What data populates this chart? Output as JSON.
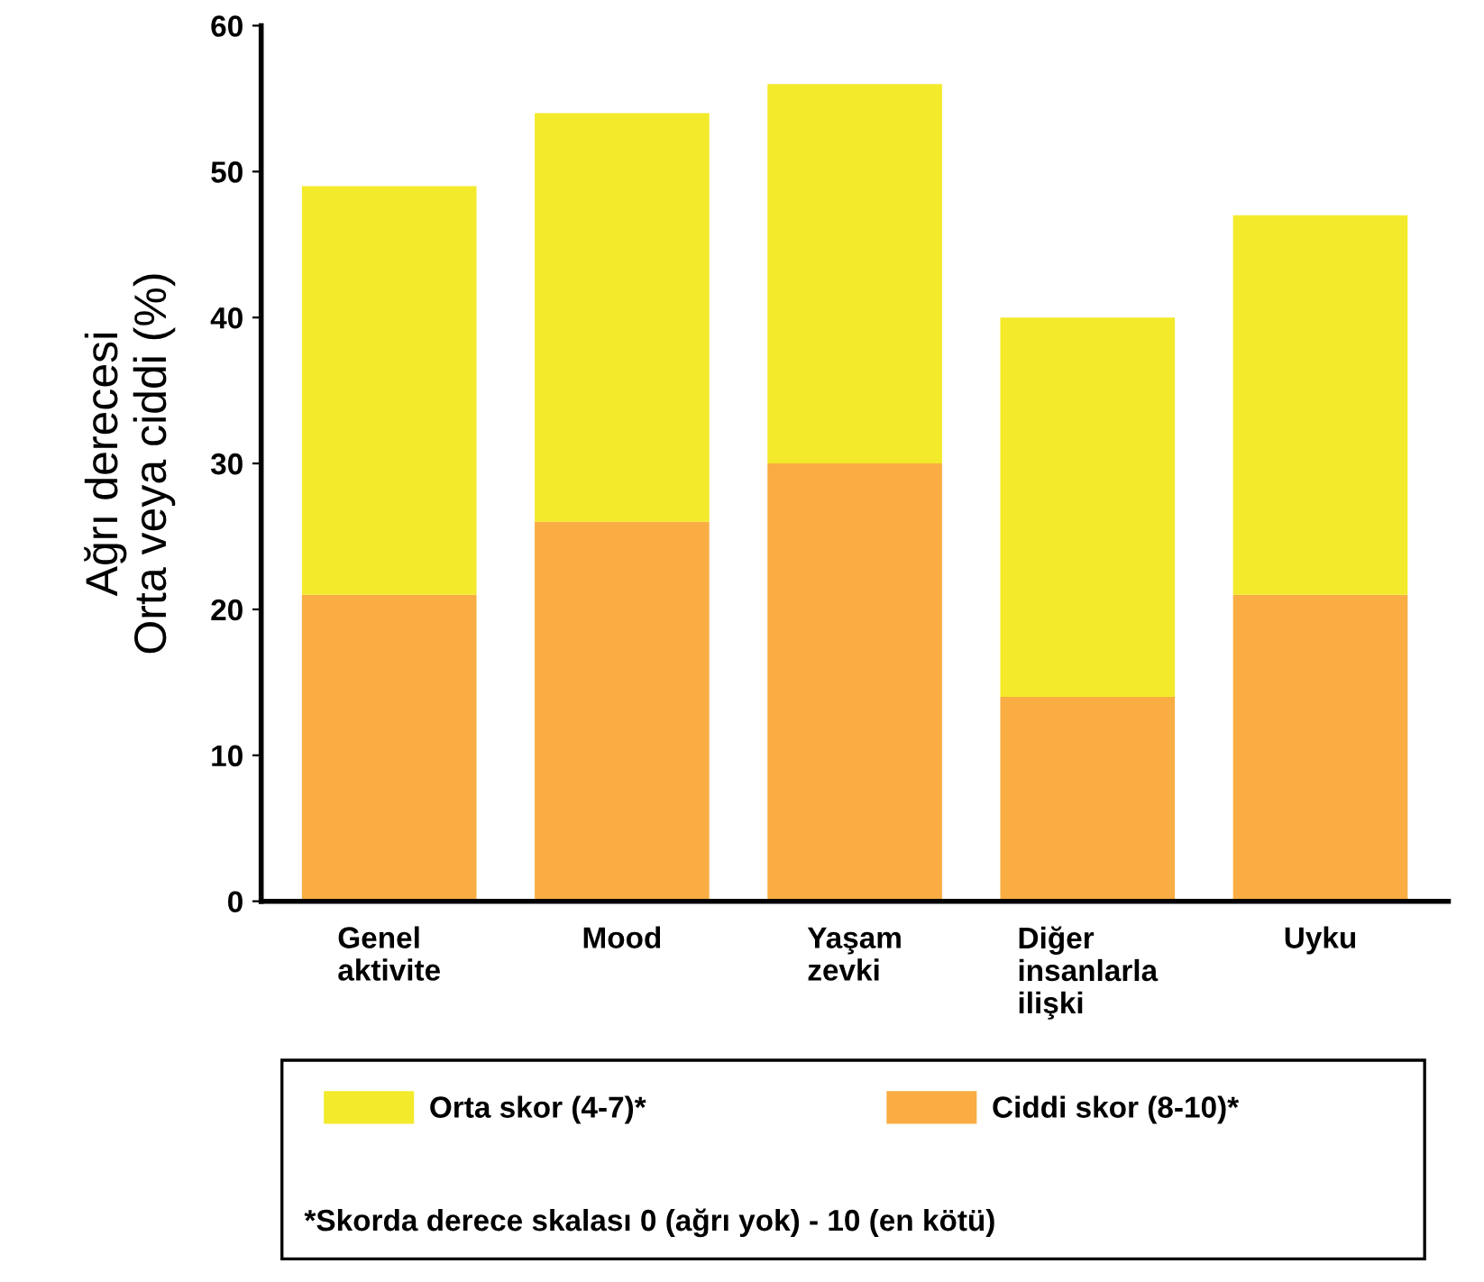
{
  "chart_data": {
    "type": "bar",
    "stacked": true,
    "ylabel": "Ağrı derecesi\nOrta veya ciddi (%)",
    "categories": [
      "Genel\naktivite",
      "Mood",
      "Yaşam\nzevki",
      "Diğer\ninsanlarla\nilişki",
      "Uyku"
    ],
    "series": [
      {
        "name": "Ciddi skor (8-10)*",
        "color": "#f9ad42",
        "values": [
          21,
          26,
          30,
          14,
          21
        ]
      },
      {
        "name": "Orta skor (4-7)*",
        "color": "#f3ea2b",
        "values": [
          28,
          28,
          26,
          26,
          26
        ]
      }
    ],
    "ylim": [
      0,
      60
    ],
    "yticks": [
      0,
      10,
      20,
      30,
      40,
      50,
      60
    ],
    "grid": false,
    "legend": "bottom",
    "annotations": [
      "*Skorda derece skalası 0 (ağrı yok) - 10 (en kötü)"
    ]
  }
}
